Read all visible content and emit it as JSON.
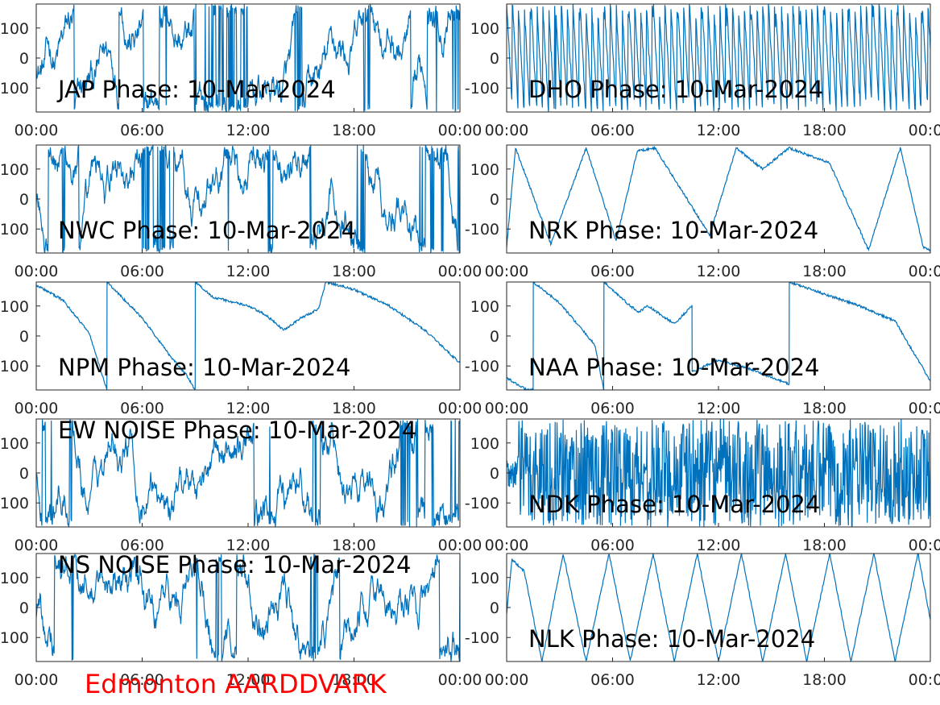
{
  "figure_label": "Edmonton AARDDVARK",
  "colors": {
    "trace": "#0072bd",
    "axis": "#262626",
    "label": "#ff0000"
  },
  "chart_data": [
    {
      "type": "line",
      "title": "JAP Phase: 10-Mar-2024",
      "x_ticks": [
        "00:00",
        "06:00",
        "12:00",
        "18:00",
        "00:00"
      ],
      "y_ticks": [
        "100",
        "0",
        "-100"
      ],
      "ylim": [
        -180,
        180
      ],
      "behavior": "noise-wrapped"
    },
    {
      "type": "line",
      "title": "DHO Phase: 10-Mar-2024",
      "x_ticks": [
        "00:00",
        "06:00",
        "12:00",
        "18:00",
        "00:00"
      ],
      "y_ticks": [
        "100",
        "0",
        "-100"
      ],
      "ylim": [
        -180,
        180
      ],
      "behavior": "fast-ramps"
    },
    {
      "type": "line",
      "title": "NWC Phase: 10-Mar-2024",
      "x_ticks": [
        "00:00",
        "06:00",
        "12:00",
        "18:00",
        "00:00"
      ],
      "y_ticks": [
        "100",
        "0",
        "-100"
      ],
      "ylim": [
        -180,
        180
      ],
      "behavior": "noise-wrapped"
    },
    {
      "type": "line",
      "title": "NRK Phase: 10-Mar-2024",
      "x_ticks": [
        "00:00",
        "06:00",
        "12:00",
        "18:00",
        "00:00"
      ],
      "y_ticks": [
        "100",
        "0",
        "-100"
      ],
      "ylim": [
        -180,
        180
      ],
      "behavior": "descending-ramps",
      "series": [
        {
          "x_hours": [
            0,
            0.5,
            2.5,
            4.5,
            6.2,
            7.4,
            8.4,
            11.5,
            13.0,
            14.5,
            16.0,
            18.3,
            20.5,
            22.3,
            23.6,
            24
          ],
          "y_deg": [
            -160,
            170,
            -150,
            170,
            -140,
            160,
            170,
            -120,
            170,
            100,
            170,
            120,
            -170,
            170,
            -160,
            -170
          ]
        }
      ]
    },
    {
      "type": "line",
      "title": "NPM Phase: 10-Mar-2024",
      "x_ticks": [
        "00:00",
        "06:00",
        "12:00",
        "18:00",
        "00:00"
      ],
      "y_ticks": [
        "100",
        "0",
        "-100"
      ],
      "ylim": [
        -180,
        180
      ],
      "series": [
        {
          "x_hours": [
            0,
            1.5,
            3.0,
            4.0,
            4.01,
            6.0,
            7.5,
            8.5,
            9.0,
            9.01,
            10.0,
            12.0,
            13.0,
            14.0,
            15.0,
            16.0,
            16.4,
            16.41,
            18.0,
            20.0,
            22.0,
            24.0
          ],
          "y_deg": [
            170,
            120,
            10,
            -180,
            180,
            60,
            -60,
            -130,
            -180,
            180,
            130,
            100,
            70,
            20,
            60,
            90,
            180,
            180,
            155,
            100,
            20,
            -90
          ]
        }
      ]
    },
    {
      "type": "line",
      "title": "NAA Phase: 10-Mar-2024",
      "x_ticks": [
        "00:00",
        "06:00",
        "12:00",
        "18:00",
        "00:00"
      ],
      "y_ticks": [
        "100",
        "0",
        "-100"
      ],
      "ylim": [
        -180,
        180
      ],
      "series": [
        {
          "x_hours": [
            0,
            1.0,
            1.5,
            1.51,
            3.0,
            5.0,
            5.5,
            5.51,
            7.0,
            7.5,
            8.0,
            9.5,
            10.5,
            10.51,
            12.0,
            14.0,
            15.5,
            16.0,
            16.01,
            18.0,
            20.0,
            22.0,
            24.0
          ],
          "y_deg": [
            -140,
            -175,
            -180,
            180,
            110,
            -30,
            -180,
            180,
            100,
            80,
            100,
            40,
            100,
            -120,
            -80,
            -115,
            -150,
            -160,
            180,
            140,
            100,
            50,
            -150
          ]
        }
      ]
    },
    {
      "type": "line",
      "title": "EW NOISE Phase: 10-Mar-2024",
      "x_ticks": [
        "00:00",
        "06:00",
        "12:00",
        "18:00",
        "00:00"
      ],
      "y_ticks": [
        "100",
        "0",
        "-100"
      ],
      "ylim": [
        -180,
        180
      ],
      "behavior": "noise-wrapped"
    },
    {
      "type": "line",
      "title": "NDK Phase: 10-Mar-2024",
      "x_ticks": [
        "00:00",
        "06:00",
        "12:00",
        "18:00",
        "00:00"
      ],
      "y_ticks": [
        "100",
        "0",
        "-100"
      ],
      "ylim": [
        -180,
        180
      ],
      "behavior": "noise-dense"
    },
    {
      "type": "line",
      "title": "NS NOISE Phase: 10-Mar-2024",
      "x_ticks": [
        "00:00",
        "06:00",
        "12:00",
        "18:00",
        "00:00"
      ],
      "y_ticks": [
        "100",
        "0",
        "-100"
      ],
      "ylim": [
        -180,
        180
      ],
      "behavior": "noise-wrapped"
    },
    {
      "type": "line",
      "title": "NLK Phase: 10-Mar-2024",
      "x_ticks": [
        "00:00",
        "06:00",
        "12:00",
        "18:00",
        "00:00"
      ],
      "y_ticks": [
        "100",
        "0",
        "-100"
      ],
      "ylim": [
        -180,
        180
      ],
      "behavior": "descending-ramps",
      "series": [
        {
          "x_hours": [
            0,
            0.3,
            1.0,
            2.0,
            3.2,
            4.5,
            5.8,
            7.0,
            8.3,
            9.5,
            10.8,
            12.0,
            13.3,
            14.5,
            15.8,
            17.0,
            18.3,
            19.5,
            20.8,
            22.0,
            23.3,
            24
          ],
          "y_deg": [
            -20,
            160,
            120,
            -180,
            180,
            -180,
            180,
            -180,
            180,
            -180,
            180,
            -180,
            180,
            -180,
            180,
            -180,
            180,
            -180,
            180,
            -180,
            180,
            -40
          ]
        }
      ]
    }
  ]
}
